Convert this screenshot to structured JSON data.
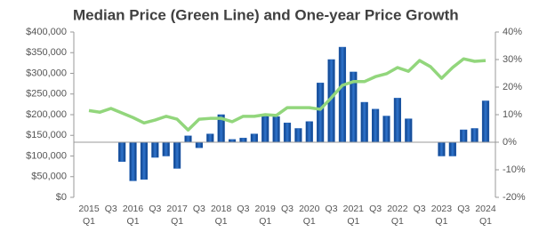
{
  "chart_data": {
    "type": "bar",
    "title": "Median Price (Green Line) and One-year Price Growth",
    "categories": [
      "2015\nQ1",
      null,
      "Q3",
      null,
      "2016\nQ1",
      null,
      "Q3",
      null,
      "2017\nQ1",
      null,
      "Q3",
      null,
      "2018\nQ1",
      null,
      "Q3",
      null,
      "2019\nQ1",
      null,
      "Q3",
      null,
      "2020\nQ1",
      null,
      "Q3",
      null,
      "2021\nQ1",
      null,
      "Q3",
      null,
      "2022\nQ1",
      null,
      "Q3",
      null,
      "2023\nQ1",
      null,
      "Q3",
      null,
      "2024\nQ1"
    ],
    "series": [
      {
        "name": "One-year Price Growth",
        "type": "bar",
        "axis": "y2",
        "color": "#1f5fb4",
        "values": [
          null,
          null,
          null,
          -7,
          -14,
          -13.5,
          -5.5,
          -5,
          -9.5,
          2.3,
          -2,
          3,
          10,
          1,
          1.5,
          3,
          10,
          9.3,
          7,
          5,
          7.5,
          21.5,
          30,
          34.5,
          25.5,
          14.5,
          12,
          9.5,
          16,
          8.5,
          null,
          null,
          -5,
          -5,
          4.5,
          5,
          15
        ]
      },
      {
        "name": "Median Price",
        "type": "line",
        "axis": "y",
        "color": "#92d67c",
        "values": [
          210000,
          206000,
          215000,
          204000,
          193000,
          180000,
          187000,
          196000,
          189000,
          163000,
          189000,
          191000,
          191000,
          183000,
          196000,
          196000,
          200000,
          198000,
          217000,
          217000,
          217000,
          213000,
          241000,
          271000,
          280000,
          280000,
          292000,
          299000,
          314000,
          305000,
          331000,
          316000,
          288000,
          314000,
          335000,
          329000,
          331000
        ]
      }
    ],
    "ylim": [
      0,
      400000
    ],
    "yticks": [
      {
        "value": 0,
        "label": "$0"
      },
      {
        "value": 50000,
        "label": "$50,000"
      },
      {
        "value": 100000,
        "label": "$100,000"
      },
      {
        "value": 150000,
        "label": "$150,000"
      },
      {
        "value": 200000,
        "label": "$200,000"
      },
      {
        "value": 250000,
        "label": "$250,000"
      },
      {
        "value": 300000,
        "label": "$300,000"
      },
      {
        "value": 350000,
        "label": "$350,000"
      },
      {
        "value": 400000,
        "label": "$400,000"
      }
    ],
    "y2lim": [
      -20,
      40
    ],
    "y2ticks": [
      {
        "value": -20,
        "label": "-20%"
      },
      {
        "value": -10,
        "label": "-10%"
      },
      {
        "value": 0,
        "label": "0%"
      },
      {
        "value": 10,
        "label": "10%"
      },
      {
        "value": 20,
        "label": "20%"
      },
      {
        "value": 30,
        "label": "30%"
      },
      {
        "value": 40,
        "label": "40%"
      }
    ]
  }
}
